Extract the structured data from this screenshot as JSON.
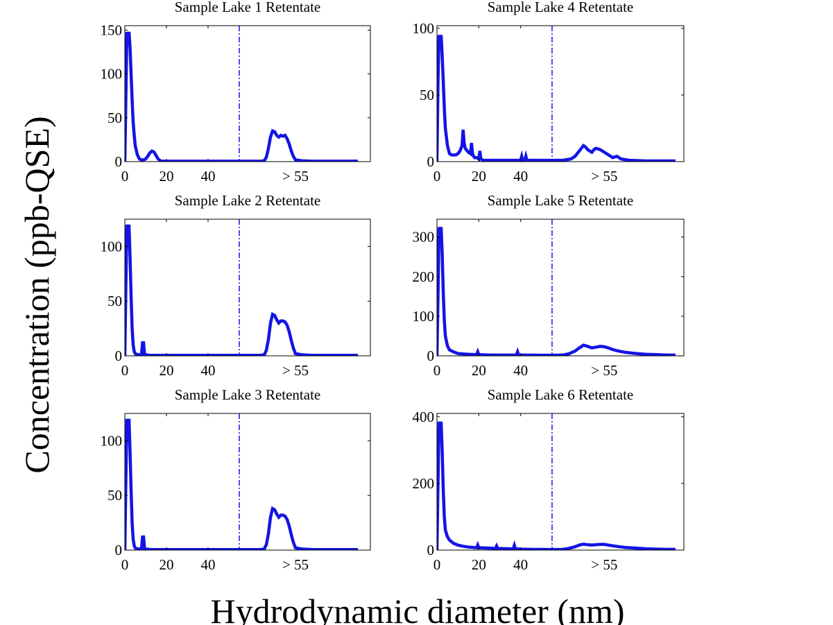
{
  "figure": {
    "ylabel": "Concentration (ppb-QSE)",
    "xlabel": "Hydrodynamic diameter (nm)"
  },
  "colors": {
    "series": "#1414e6",
    "divider": "#1414e6",
    "axis": "#000000",
    "background": "#ffffff"
  },
  "chart_data": [
    {
      "type": "line",
      "title": "Sample Lake 1 Retentate",
      "xlabel": "",
      "ylabel": "",
      "xlim": [
        0,
        118
      ],
      "ylim": [
        0,
        155
      ],
      "xticks": [
        0,
        20,
        40
      ],
      "xtick_labels": [
        "0",
        "20",
        "40"
      ],
      "extra_xtick_label": {
        "x": 82,
        "text": "> 55"
      },
      "yticks": [
        0,
        50,
        100,
        150
      ],
      "ytick_labels": [
        "0",
        "50",
        "100",
        "150"
      ],
      "divider_x": 55,
      "grid": false,
      "x": [
        0,
        0.5,
        1,
        1.5,
        2,
        2.5,
        3,
        3.5,
        4,
        4.5,
        5,
        6,
        7,
        8,
        9,
        10,
        11,
        12,
        13,
        14,
        15,
        16,
        17,
        18,
        20,
        30,
        40,
        50,
        55,
        60,
        65,
        67,
        68,
        69,
        70,
        71,
        72,
        73,
        74,
        75,
        76,
        77,
        78,
        79,
        80,
        81,
        82,
        85,
        90,
        100,
        110,
        112
      ],
      "y": [
        0,
        75,
        148,
        140,
        148,
        130,
        100,
        70,
        45,
        30,
        18,
        8,
        3,
        2,
        2,
        3,
        6,
        10,
        12,
        11,
        7,
        3,
        1,
        0.5,
        0.5,
        0.5,
        0.5,
        0.5,
        0.5,
        0.5,
        0.5,
        1,
        5,
        15,
        28,
        35,
        34,
        30,
        28,
        30,
        29,
        30,
        26,
        20,
        12,
        6,
        2,
        1,
        0.5,
        0.5,
        0.5,
        0.5
      ]
    },
    {
      "type": "line",
      "title": "Sample Lake 4 Retentate",
      "xlabel": "",
      "ylabel": "",
      "xlim": [
        0,
        118
      ],
      "ylim": [
        0,
        102
      ],
      "xticks": [
        0,
        20,
        40
      ],
      "xtick_labels": [
        "0",
        "20",
        "40"
      ],
      "extra_xtick_label": {
        "x": 80,
        "text": "> 55"
      },
      "yticks": [
        0,
        50,
        100
      ],
      "ytick_labels": [
        "0",
        "50",
        "100"
      ],
      "divider_x": 55,
      "grid": false,
      "x": [
        0,
        0.5,
        1,
        1.5,
        2,
        2.5,
        3,
        3.5,
        4,
        5,
        6,
        7,
        8,
        9,
        10,
        11,
        12,
        12.5,
        13,
        13.5,
        14,
        15,
        16,
        16.5,
        17,
        17.5,
        18,
        19,
        20,
        20.5,
        21,
        22,
        30,
        40,
        40.5,
        41,
        41.5,
        42,
        42.5,
        43,
        43.5,
        44,
        50,
        55,
        60,
        62,
        64,
        66,
        68,
        70,
        71,
        72,
        73,
        74,
        75,
        76,
        78,
        80,
        82,
        84,
        86,
        88,
        90,
        92,
        96,
        100,
        110,
        114
      ],
      "y": [
        0,
        60,
        95,
        90,
        95,
        80,
        60,
        40,
        25,
        12,
        6,
        5,
        5,
        5,
        6,
        8,
        12,
        24,
        14,
        10,
        9,
        7,
        6,
        14,
        6,
        4,
        3,
        3,
        2,
        8,
        2,
        1,
        1,
        1,
        4,
        1,
        1,
        1,
        4,
        1,
        1,
        1,
        1,
        1,
        1,
        1.5,
        2,
        4,
        8,
        12,
        11,
        9,
        8,
        7,
        9,
        10,
        9,
        7,
        5,
        3,
        4,
        2,
        1.5,
        1,
        0.8,
        0.5,
        0.5,
        0.5
      ]
    },
    {
      "type": "line",
      "title": "Sample Lake 2 Retentate",
      "xlabel": "",
      "ylabel": "",
      "xlim": [
        0,
        118
      ],
      "ylim": [
        0,
        125
      ],
      "xticks": [
        0,
        20,
        40
      ],
      "xtick_labels": [
        "0",
        "20",
        "40"
      ],
      "extra_xtick_label": {
        "x": 82,
        "text": "> 55"
      },
      "yticks": [
        0,
        50,
        100
      ],
      "ytick_labels": [
        "0",
        "50",
        "100"
      ],
      "divider_x": 55,
      "grid": false,
      "x": [
        0,
        0.5,
        1,
        1.5,
        2,
        2.5,
        3,
        3.5,
        4,
        4.5,
        5,
        6,
        7,
        8,
        8.5,
        9,
        9.5,
        10,
        12,
        20,
        30,
        40,
        50,
        55,
        60,
        65,
        67,
        68,
        69,
        70,
        71,
        72,
        73,
        74,
        75,
        76,
        77,
        78,
        79,
        80,
        81,
        82,
        85,
        90,
        100,
        110,
        112
      ],
      "y": [
        0,
        65,
        120,
        115,
        120,
        90,
        55,
        25,
        10,
        4,
        2,
        1,
        1,
        1,
        12,
        12,
        1,
        1,
        0.5,
        0.5,
        0.5,
        0.5,
        0.5,
        0.5,
        0.5,
        0.5,
        1,
        5,
        15,
        30,
        38,
        37,
        33,
        30,
        32,
        32,
        31,
        28,
        22,
        14,
        7,
        2,
        1,
        0.5,
        0.5,
        0.5,
        0.5
      ]
    },
    {
      "type": "line",
      "title": "Sample Lake 5 Retentate",
      "xlabel": "",
      "ylabel": "",
      "xlim": [
        0,
        118
      ],
      "ylim": [
        0,
        345
      ],
      "xticks": [
        0,
        20,
        40
      ],
      "xtick_labels": [
        "0",
        "20",
        "40"
      ],
      "extra_xtick_label": {
        "x": 80,
        "text": "> 55"
      },
      "yticks": [
        0,
        100,
        200,
        300
      ],
      "ytick_labels": [
        "0",
        "100",
        "200",
        "300"
      ],
      "divider_x": 55,
      "grid": false,
      "x": [
        0,
        0.5,
        1,
        1.5,
        2,
        2.5,
        3,
        3.5,
        4,
        5,
        6,
        8,
        10,
        12,
        15,
        19,
        19.5,
        20,
        25,
        30,
        38,
        38.5,
        39,
        40,
        45,
        50,
        55,
        60,
        63,
        66,
        68,
        70,
        72,
        74,
        76,
        78,
        80,
        82,
        84,
        86,
        90,
        95,
        100,
        105,
        110,
        114
      ],
      "y": [
        0,
        150,
        325,
        310,
        325,
        260,
        160,
        90,
        50,
        25,
        15,
        10,
        6,
        5,
        4,
        3,
        10,
        3,
        2,
        2,
        2,
        10,
        2,
        2,
        2,
        1.5,
        1.5,
        2,
        5,
        12,
        20,
        27,
        24,
        20,
        22,
        24,
        23,
        20,
        16,
        13,
        9,
        6,
        4,
        3,
        2,
        2
      ]
    },
    {
      "type": "line",
      "title": "Sample Lake 3 Retentate",
      "xlabel": "",
      "ylabel": "",
      "xlim": [
        0,
        118
      ],
      "ylim": [
        0,
        125
      ],
      "xticks": [
        0,
        20,
        40
      ],
      "xtick_labels": [
        "0",
        "20",
        "40"
      ],
      "extra_xtick_label": {
        "x": 82,
        "text": "> 55"
      },
      "yticks": [
        0,
        50,
        100
      ],
      "ytick_labels": [
        "0",
        "50",
        "100"
      ],
      "divider_x": 55,
      "grid": false,
      "x": [
        0,
        0.5,
        1,
        1.5,
        2,
        2.5,
        3,
        3.5,
        4,
        4.5,
        5,
        6,
        7,
        8,
        8.5,
        9,
        9.5,
        10,
        12,
        20,
        30,
        40,
        50,
        55,
        60,
        65,
        67,
        68,
        69,
        70,
        71,
        72,
        73,
        74,
        75,
        76,
        77,
        78,
        79,
        80,
        81,
        82,
        85,
        90,
        100,
        110,
        112
      ],
      "y": [
        0,
        65,
        120,
        115,
        120,
        90,
        55,
        25,
        10,
        4,
        2,
        1,
        1,
        1,
        12,
        12,
        1,
        1,
        0.5,
        0.5,
        0.5,
        0.5,
        0.5,
        0.5,
        0.5,
        0.5,
        1,
        5,
        15,
        30,
        38,
        37,
        33,
        30,
        32,
        32,
        31,
        28,
        22,
        14,
        7,
        2,
        1,
        0.5,
        0.5,
        0.5,
        0.5
      ]
    },
    {
      "type": "line",
      "title": "Sample Lake 6 Retentate",
      "xlabel": "",
      "ylabel": "",
      "xlim": [
        0,
        118
      ],
      "ylim": [
        0,
        410
      ],
      "xticks": [
        0,
        20,
        40
      ],
      "xtick_labels": [
        "0",
        "20",
        "40"
      ],
      "extra_xtick_label": {
        "x": 80,
        "text": "> 55"
      },
      "yticks": [
        0,
        200,
        400
      ],
      "ytick_labels": [
        "0",
        "200",
        "400"
      ],
      "divider_x": 55,
      "grid": false,
      "x": [
        0,
        0.5,
        1,
        1.5,
        2,
        2.5,
        3,
        3.5,
        4,
        5,
        6,
        8,
        10,
        12,
        15,
        19,
        19.5,
        20,
        25,
        28,
        28.5,
        29,
        35,
        36.5,
        37,
        37.5,
        40,
        45,
        50,
        55,
        60,
        63,
        66,
        68,
        70,
        72,
        74,
        76,
        78,
        80,
        82,
        84,
        86,
        90,
        95,
        100,
        105,
        110,
        114
      ],
      "y": [
        0,
        200,
        385,
        370,
        385,
        300,
        180,
        100,
        60,
        40,
        30,
        20,
        15,
        12,
        9,
        7,
        15,
        7,
        6,
        5,
        12,
        5,
        4,
        4,
        14,
        4,
        3,
        2,
        2,
        1.5,
        2,
        5,
        10,
        15,
        18,
        16,
        15,
        16,
        17,
        17,
        15,
        13,
        11,
        8,
        6,
        4,
        3,
        2,
        2
      ]
    }
  ]
}
